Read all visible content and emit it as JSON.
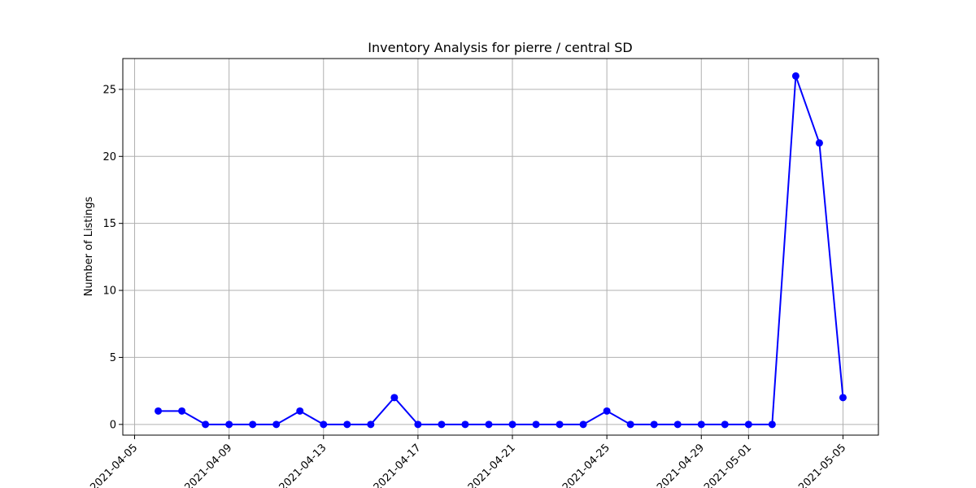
{
  "chart_data": {
    "type": "line",
    "title": "Inventory Analysis for pierre / central SD",
    "xlabel": "",
    "ylabel": "Number of Listings",
    "grid": true,
    "color": "#0000ff",
    "marker": "circle",
    "x_ticks": [
      "2021-04-05",
      "2021-04-09",
      "2021-04-13",
      "2021-04-17",
      "2021-04-21",
      "2021-04-25",
      "2021-04-29",
      "2021-05-01",
      "2021-05-05"
    ],
    "y_ticks": [
      0,
      5,
      10,
      15,
      20,
      25
    ],
    "ylim": [
      -0.8,
      27.3
    ],
    "xlim": [
      "2021-04-04 12:00",
      "2021-05-06 12:00"
    ],
    "x": [
      "2021-04-06",
      "2021-04-07",
      "2021-04-08",
      "2021-04-09",
      "2021-04-10",
      "2021-04-11",
      "2021-04-12",
      "2021-04-13",
      "2021-04-14",
      "2021-04-15",
      "2021-04-16",
      "2021-04-17",
      "2021-04-18",
      "2021-04-19",
      "2021-04-20",
      "2021-04-21",
      "2021-04-22",
      "2021-04-23",
      "2021-04-24",
      "2021-04-25",
      "2021-04-26",
      "2021-04-27",
      "2021-04-28",
      "2021-04-29",
      "2021-04-30",
      "2021-05-01",
      "2021-05-02",
      "2021-05-03",
      "2021-05-04",
      "2021-05-05"
    ],
    "values": [
      1,
      1,
      0,
      0,
      0,
      0,
      1,
      0,
      0,
      0,
      2,
      0,
      0,
      0,
      0,
      0,
      0,
      0,
      0,
      1,
      0,
      0,
      0,
      0,
      0,
      0,
      0,
      26,
      21,
      2
    ]
  }
}
